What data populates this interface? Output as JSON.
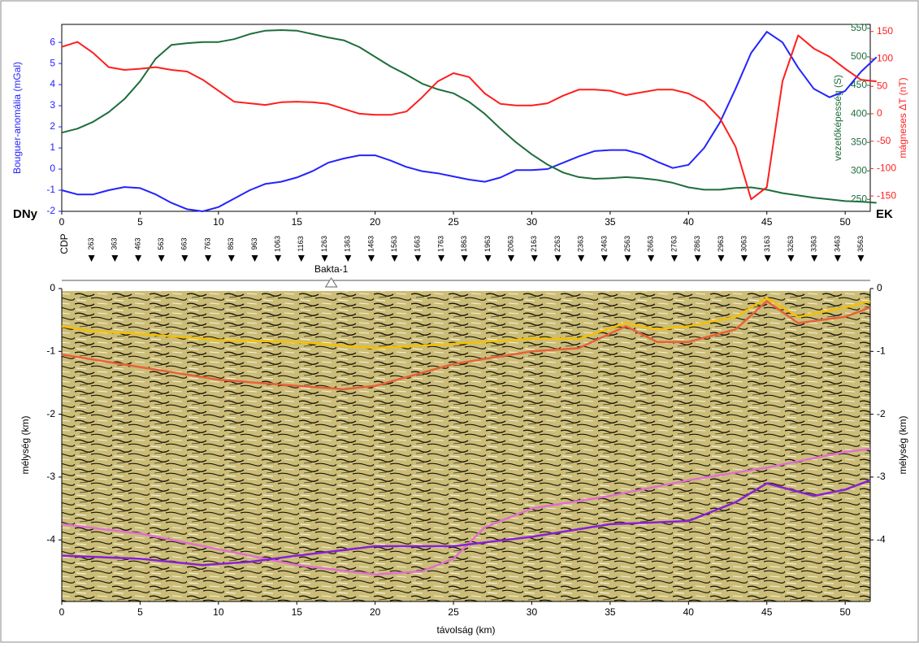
{
  "chart_data": [
    {
      "type": "line",
      "ylabel": "Bouguer-anomália (mGal)",
      "y2label": "vezetőképesség (S)",
      "y3label": "mágneses ΔT (nT)",
      "left_label": "DNy",
      "right_label": "EK",
      "xlim": [
        0,
        51.6
      ],
      "xticks": [
        0,
        5,
        10,
        15,
        20,
        25,
        30,
        35,
        40,
        45,
        50
      ],
      "ylim": [
        -2,
        6.85
      ],
      "yticks": [
        -2,
        -1,
        0,
        1,
        2,
        3,
        4,
        5,
        6
      ],
      "y2lim": [
        229,
        557
      ],
      "y2ticks": [
        250,
        300,
        350,
        400,
        450,
        500,
        550
      ],
      "y3lim": [
        -178,
        163
      ],
      "y3ticks": [
        -150,
        -100,
        -50,
        0,
        50,
        100,
        150
      ],
      "x": [
        0,
        1,
        2,
        3,
        4,
        5,
        6,
        7,
        8,
        9,
        10,
        11,
        12,
        13,
        14,
        15,
        16,
        17,
        18,
        19,
        20,
        21,
        22,
        23,
        24,
        25,
        26,
        27,
        28,
        29,
        30,
        31,
        32,
        33,
        34,
        35,
        36,
        37,
        38,
        39,
        40,
        41,
        42,
        43,
        44,
        45,
        46,
        47,
        48,
        49,
        50,
        51,
        52
      ],
      "series": [
        {
          "name": "Bouguer-anomália",
          "color": "#2323ff",
          "axis": "y",
          "values": [
            -1,
            -1.2,
            -1.2,
            -1,
            -0.85,
            -0.9,
            -1.2,
            -1.6,
            -1.9,
            -2,
            -1.8,
            -1.4,
            -1,
            -0.7,
            -0.6,
            -0.4,
            -0.1,
            0.3,
            0.5,
            0.65,
            0.65,
            0.4,
            0.1,
            -0.1,
            -0.2,
            -0.35,
            -0.5,
            -0.6,
            -0.4,
            -0.05,
            -0.05,
            0,
            0.3,
            0.6,
            0.85,
            0.9,
            0.9,
            0.7,
            0.35,
            0.05,
            0.2,
            1,
            2.2,
            3.8,
            5.5,
            6.5,
            6,
            4.8,
            3.8,
            3.4,
            3.7,
            4.6,
            5.3
          ]
        },
        {
          "name": "vezetőképesség",
          "color": "#1e6e3c",
          "axis": "y2",
          "values": [
            367,
            374,
            386,
            403,
            426,
            457,
            497,
            521,
            524,
            526,
            526,
            531,
            540,
            546,
            547,
            546,
            540,
            534,
            529,
            517,
            500,
            483,
            469,
            453,
            443,
            436,
            421,
            400,
            374,
            350,
            329,
            311,
            297,
            289,
            286,
            287,
            289,
            287,
            284,
            279,
            271,
            267,
            267,
            270,
            271,
            267,
            261,
            257,
            253,
            250,
            247,
            246,
            244
          ]
        },
        {
          "name": "mágneses ΔT",
          "color": "#ff1e1e",
          "axis": "y3",
          "values": [
            122,
            131,
            111,
            85,
            80,
            82,
            85,
            80,
            77,
            62,
            42,
            22,
            19,
            16,
            21,
            22,
            21,
            18,
            9,
            0,
            -2,
            -2,
            4,
            30,
            59,
            74,
            67,
            37,
            18,
            15,
            15,
            19,
            33,
            44,
            44,
            42,
            34,
            39,
            44,
            44,
            37,
            22,
            -8,
            -60,
            -156,
            -134,
            59,
            143,
            119,
            104,
            82,
            62,
            59
          ]
        }
      ]
    },
    {
      "type": "line",
      "xlabel": "távolság (km)",
      "ylabel": "mélység (km)",
      "y2label": "mélység (km)",
      "xlim": [
        0,
        51.6
      ],
      "xticks": [
        0,
        5,
        10,
        15,
        20,
        25,
        30,
        35,
        40,
        45,
        50
      ],
      "ylim": [
        -4.98,
        0
      ],
      "yticks": [
        0,
        -1,
        -2,
        -3,
        -4
      ],
      "y2ticks": [
        0,
        -1,
        -2,
        -3,
        -4
      ],
      "cdp": {
        "label": "CDP",
        "labels": [
          263,
          363,
          463,
          563,
          663,
          763,
          863,
          963,
          1063,
          1163,
          1263,
          1363,
          1463,
          1563,
          1663,
          1763,
          1863,
          1963,
          2063,
          2163,
          2263,
          2363,
          2463,
          2563,
          2663,
          2763,
          2863,
          2963,
          3063,
          3163,
          3263,
          3363,
          3463,
          3563
        ],
        "x": [
          1.9,
          3.39,
          4.88,
          6.36,
          7.85,
          9.34,
          10.83,
          12.32,
          13.8,
          15.29,
          16.78,
          18.27,
          19.76,
          21.24,
          22.73,
          24.22,
          25.71,
          27.2,
          28.68,
          30.17,
          31.66,
          33.15,
          34.64,
          36.12,
          37.61,
          39.1,
          40.59,
          42.08,
          43.56,
          45.05,
          46.54,
          48.03,
          49.52,
          51
        ]
      },
      "well": {
        "label": "Bakta-1",
        "x": 17.2
      },
      "series": [
        {
          "color": "#f5c000",
          "x": [
            0,
            2,
            5,
            10,
            15,
            20,
            25,
            30,
            33,
            36,
            38,
            40,
            43,
            45,
            47,
            50,
            51.6
          ],
          "values": [
            -0.6,
            -0.68,
            -0.72,
            -0.82,
            -0.85,
            -0.95,
            -0.88,
            -0.8,
            -0.8,
            -0.55,
            -0.65,
            -0.6,
            -0.45,
            -0.15,
            -0.45,
            -0.3,
            -0.2
          ]
        },
        {
          "color": "#e8603a",
          "x": [
            0,
            5,
            10,
            15,
            18,
            20,
            25,
            30,
            33,
            36,
            38,
            40,
            43,
            45,
            47,
            50,
            51.6
          ],
          "values": [
            -1.05,
            -1.25,
            -1.45,
            -1.55,
            -1.6,
            -1.55,
            -1.2,
            -1,
            -0.95,
            -0.6,
            -0.85,
            -0.85,
            -0.65,
            -0.2,
            -0.55,
            -0.45,
            -0.3
          ]
        },
        {
          "color": "#e070d0",
          "x": [
            0,
            5,
            10,
            15,
            20,
            23,
            25,
            27,
            30,
            35,
            40,
            45,
            50,
            51.6
          ],
          "values": [
            -3.75,
            -3.9,
            -4.15,
            -4.4,
            -4.55,
            -4.5,
            -4.3,
            -3.8,
            -3.5,
            -3.3,
            -3.05,
            -2.85,
            -2.6,
            -2.55
          ]
        },
        {
          "color": "#8a1fd6",
          "x": [
            0,
            5,
            9,
            12,
            15,
            20,
            25,
            30,
            35,
            40,
            43,
            45,
            48,
            50,
            51.6
          ],
          "values": [
            -4.25,
            -4.3,
            -4.4,
            -4.35,
            -4.25,
            -4.1,
            -4.1,
            -3.95,
            -3.75,
            -3.7,
            -3.4,
            -3.1,
            -3.3,
            -3.2,
            -3.05
          ]
        }
      ]
    }
  ]
}
